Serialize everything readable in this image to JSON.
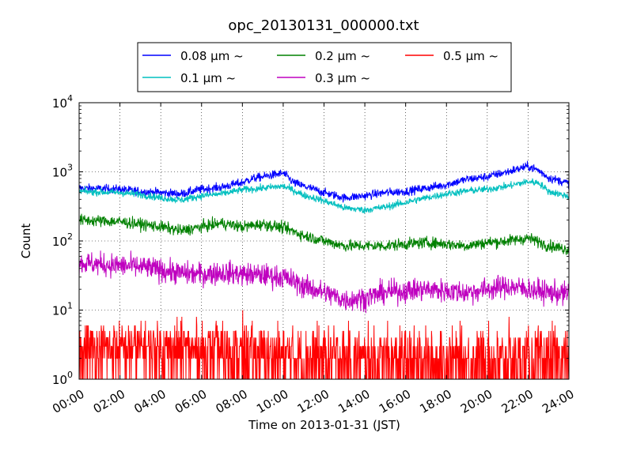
{
  "chart_data": {
    "type": "line",
    "title": "opc_20130131_000000.txt",
    "xlabel": "Time on 2013-01-31 (JST)",
    "ylabel": "Count",
    "yscale": "log",
    "ylim": [
      1,
      10000
    ],
    "xlim": [
      "00:00",
      "24:00"
    ],
    "x_ticks": [
      "00:00",
      "02:00",
      "04:00",
      "06:00",
      "08:00",
      "10:00",
      "12:00",
      "14:00",
      "16:00",
      "18:00",
      "20:00",
      "22:00",
      "24:00"
    ],
    "y_ticks": [
      {
        "value": 1,
        "mantissa": "10",
        "exp": "0"
      },
      {
        "value": 10,
        "mantissa": "10",
        "exp": "1"
      },
      {
        "value": 100,
        "mantissa": "10",
        "exp": "2"
      },
      {
        "value": 1000,
        "mantissa": "10",
        "exp": "3"
      },
      {
        "value": 10000,
        "mantissa": "10",
        "exp": "4"
      }
    ],
    "grid": true,
    "legend_position": "top",
    "series": [
      {
        "name": "0.08 μm ~",
        "color": "#0000ff",
        "noise": 0.06,
        "points": [
          [
            0,
            580
          ],
          [
            1,
            570
          ],
          [
            2,
            560
          ],
          [
            3,
            520
          ],
          [
            4,
            500
          ],
          [
            5,
            480
          ],
          [
            6,
            560
          ],
          [
            7,
            600
          ],
          [
            8,
            700
          ],
          [
            8.5,
            800
          ],
          [
            9,
            850
          ],
          [
            10,
            950
          ],
          [
            10.5,
            700
          ],
          [
            11,
            620
          ],
          [
            12,
            500
          ],
          [
            13,
            420
          ],
          [
            14,
            450
          ],
          [
            15,
            500
          ],
          [
            16,
            520
          ],
          [
            17,
            580
          ],
          [
            18,
            650
          ],
          [
            19,
            780
          ],
          [
            20,
            850
          ],
          [
            21,
            1000
          ],
          [
            22,
            1200
          ],
          [
            22.5,
            1050
          ],
          [
            23,
            820
          ],
          [
            24,
            680
          ]
        ]
      },
      {
        "name": "0.1 μm ~",
        "color": "#00bfbf",
        "noise": 0.05,
        "points": [
          [
            0,
            520
          ],
          [
            1,
            510
          ],
          [
            2,
            500
          ],
          [
            3,
            470
          ],
          [
            4,
            420
          ],
          [
            5,
            390
          ],
          [
            6,
            450
          ],
          [
            7,
            480
          ],
          [
            8,
            550
          ],
          [
            9,
            580
          ],
          [
            10,
            620
          ],
          [
            11,
            460
          ],
          [
            12,
            380
          ],
          [
            13,
            300
          ],
          [
            14,
            280
          ],
          [
            15,
            310
          ],
          [
            16,
            360
          ],
          [
            17,
            420
          ],
          [
            18,
            480
          ],
          [
            19,
            530
          ],
          [
            20,
            560
          ],
          [
            21,
            620
          ],
          [
            22,
            720
          ],
          [
            22.5,
            700
          ],
          [
            23,
            520
          ],
          [
            24,
            440
          ]
        ]
      },
      {
        "name": "0.2 μm ~",
        "color": "#008000",
        "noise": 0.08,
        "points": [
          [
            0,
            200
          ],
          [
            1,
            195
          ],
          [
            2,
            190
          ],
          [
            3,
            175
          ],
          [
            4,
            160
          ],
          [
            5,
            140
          ],
          [
            6,
            160
          ],
          [
            7,
            180
          ],
          [
            8,
            160
          ],
          [
            9,
            175
          ],
          [
            10,
            155
          ],
          [
            11,
            120
          ],
          [
            12,
            100
          ],
          [
            13,
            85
          ],
          [
            14,
            85
          ],
          [
            15,
            85
          ],
          [
            16,
            90
          ],
          [
            17,
            95
          ],
          [
            18,
            90
          ],
          [
            19,
            85
          ],
          [
            20,
            95
          ],
          [
            21,
            100
          ],
          [
            22,
            110
          ],
          [
            23,
            85
          ],
          [
            24,
            75
          ]
        ]
      },
      {
        "name": "0.3 μm ~",
        "color": "#bf00bf",
        "noise": 0.16,
        "points": [
          [
            0,
            48
          ],
          [
            1,
            46
          ],
          [
            2,
            44
          ],
          [
            3,
            42
          ],
          [
            4,
            38
          ],
          [
            5,
            34
          ],
          [
            6,
            33
          ],
          [
            7,
            35
          ],
          [
            8,
            33
          ],
          [
            9,
            32
          ],
          [
            10,
            30
          ],
          [
            11,
            22
          ],
          [
            12,
            18
          ],
          [
            13,
            14
          ],
          [
            14,
            15
          ],
          [
            15,
            18
          ],
          [
            16,
            19
          ],
          [
            17,
            20
          ],
          [
            18,
            19
          ],
          [
            19,
            18
          ],
          [
            20,
            20
          ],
          [
            21,
            22
          ],
          [
            22,
            20
          ],
          [
            23,
            18
          ],
          [
            24,
            17
          ]
        ]
      },
      {
        "name": "0.5 μm ~",
        "color": "#ff0000",
        "noise": 0,
        "points": [
          [
            0,
            3
          ],
          [
            4,
            3
          ],
          [
            8,
            2.5
          ],
          [
            12,
            2.2
          ],
          [
            16,
            2
          ],
          [
            20,
            2
          ],
          [
            24,
            2
          ]
        ]
      }
    ]
  }
}
